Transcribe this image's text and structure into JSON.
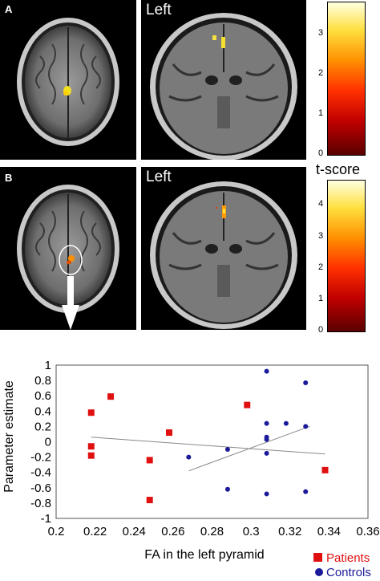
{
  "panels": {
    "a_label": "A",
    "b_label": "B",
    "left_label_top": "Left",
    "left_label_bottom": "Left"
  },
  "colorbars": {
    "top": {
      "ticks": [
        "3",
        "2",
        "1",
        "0"
      ],
      "max": 3.8
    },
    "bottom": {
      "title": "t-score",
      "ticks": [
        "4",
        "3",
        "2",
        "1",
        "0"
      ],
      "max": 4.8
    }
  },
  "chart_data": {
    "type": "scatter",
    "xlabel": "FA in the left pyramid",
    "ylabel": "Parameter estimate",
    "xlim": [
      0.2,
      0.36
    ],
    "ylim": [
      -1,
      1
    ],
    "xticks": [
      "0.2",
      "0.22",
      "0.24",
      "0.26",
      "0.28",
      "0.3",
      "0.32",
      "0.34",
      "0.36"
    ],
    "yticks": [
      "1",
      "0.8",
      "0.6",
      "0.4",
      "0.2",
      "0",
      "-0.2",
      "-0.4",
      "-0.6",
      "-0.8",
      "-1"
    ],
    "series": [
      {
        "name": "Patients",
        "color": "#e01010",
        "marker": "square",
        "points": [
          [
            0.218,
            0.38
          ],
          [
            0.228,
            0.59
          ],
          [
            0.218,
            -0.06
          ],
          [
            0.218,
            -0.18
          ],
          [
            0.248,
            -0.24
          ],
          [
            0.248,
            -0.76
          ],
          [
            0.258,
            0.12
          ],
          [
            0.298,
            0.48
          ],
          [
            0.338,
            -0.37
          ]
        ],
        "fit": [
          [
            0.218,
            0.06
          ],
          [
            0.338,
            -0.16
          ]
        ]
      },
      {
        "name": "Controls",
        "color": "#1a1a9a",
        "marker": "circle",
        "points": [
          [
            0.268,
            -0.2
          ],
          [
            0.288,
            -0.62
          ],
          [
            0.288,
            -0.1
          ],
          [
            0.308,
            0.92
          ],
          [
            0.308,
            0.24
          ],
          [
            0.308,
            0.06
          ],
          [
            0.308,
            0.03
          ],
          [
            0.308,
            -0.15
          ],
          [
            0.308,
            -0.68
          ],
          [
            0.318,
            0.24
          ],
          [
            0.328,
            0.77
          ],
          [
            0.328,
            0.2
          ],
          [
            0.328,
            -0.65
          ]
        ],
        "fit": [
          [
            0.268,
            -0.38
          ],
          [
            0.33,
            0.2
          ]
        ]
      }
    ]
  }
}
